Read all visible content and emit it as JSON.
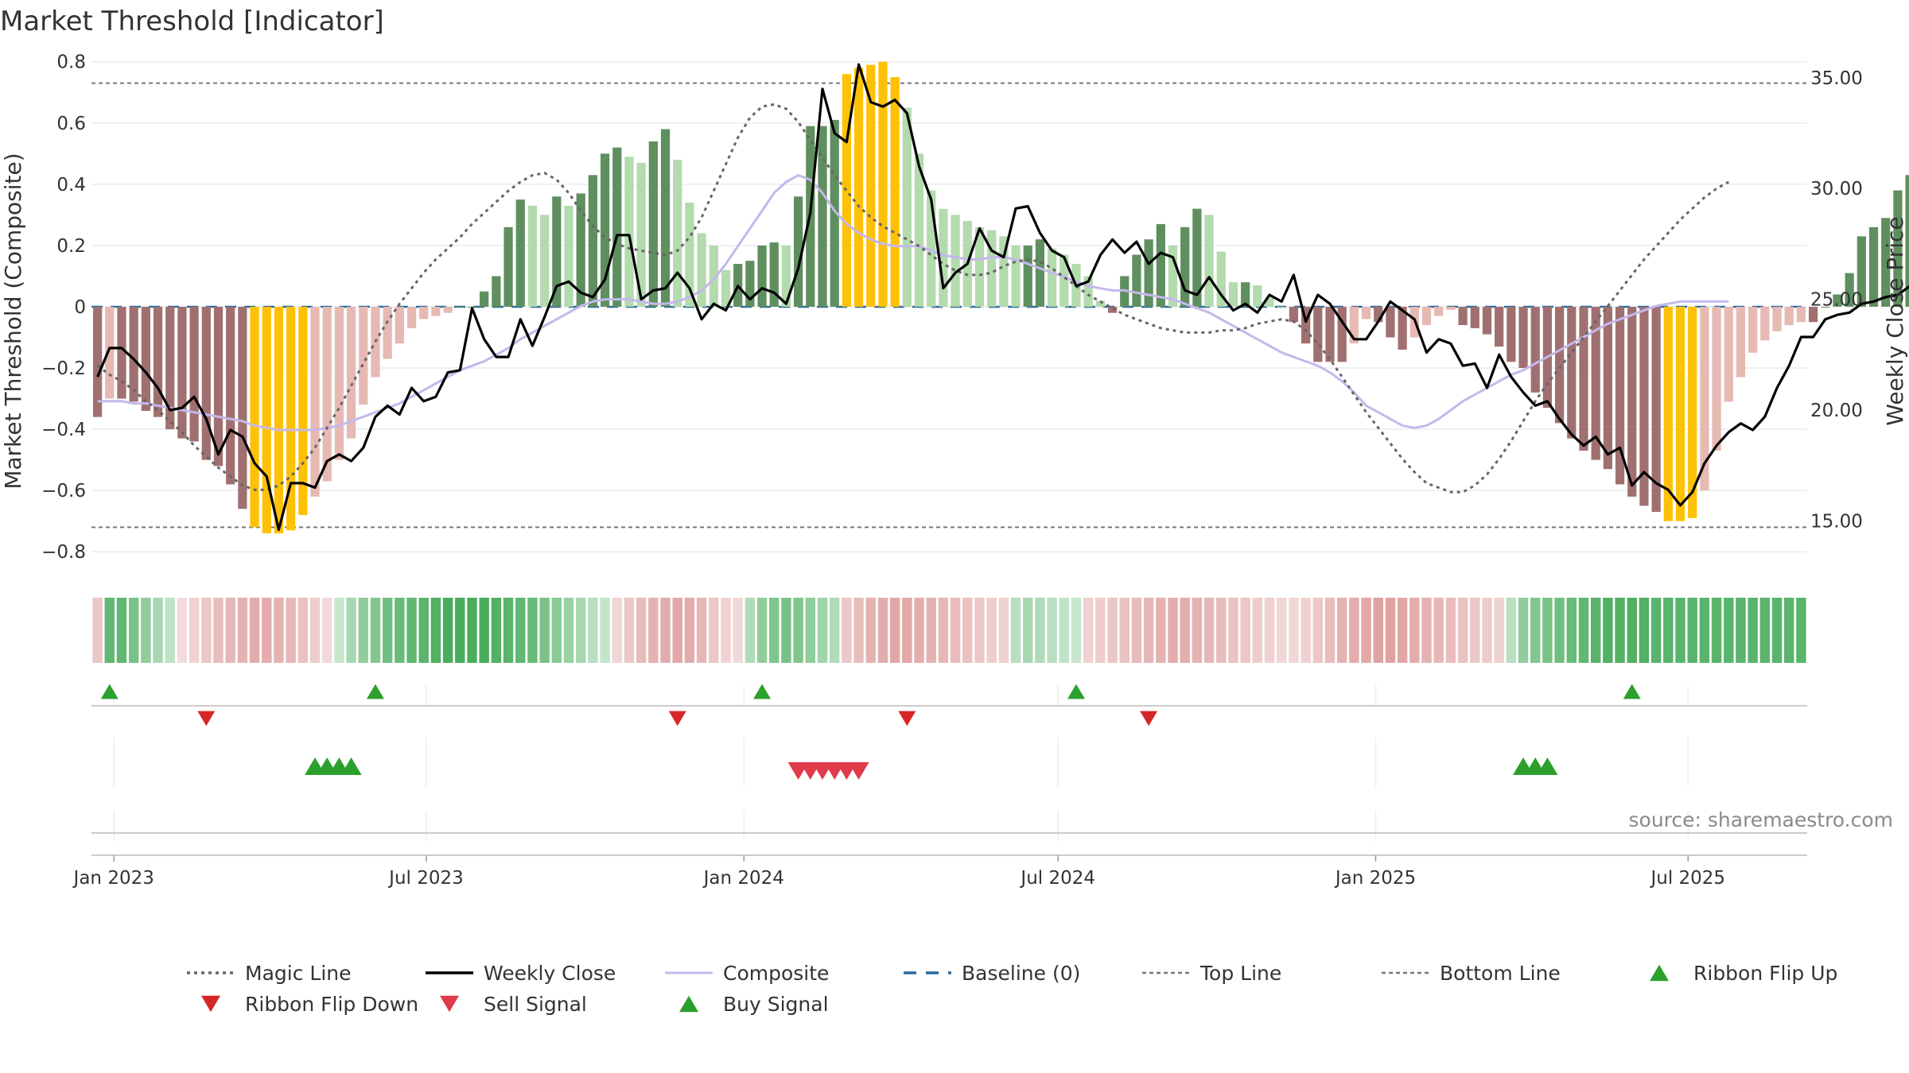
{
  "chart_data": {
    "type": "bar",
    "title": "Market Threshold [Indicator]",
    "ylabel": "Market Threshold (Composite)",
    "y2label": "Weekly Close Price",
    "source": "source: sharemaestro.com",
    "ylim": [
      -0.88,
      0.82
    ],
    "y2lim": [
      12.5,
      36.0
    ],
    "yticks": [
      "0.8",
      "0.6",
      "0.4",
      "0.2",
      "0",
      "−0.2",
      "−0.4",
      "−0.6",
      "−0.8"
    ],
    "ytick_values": [
      0.8,
      0.6,
      0.4,
      0.2,
      0,
      -0.2,
      -0.4,
      -0.6,
      -0.8
    ],
    "y2ticks": [
      "35.00",
      "30.00",
      "25.00",
      "20.00",
      "15.00"
    ],
    "y2tick_values": [
      35,
      30,
      25,
      20,
      15
    ],
    "x_start": "2022-12-19",
    "x_end": "2025-09-08",
    "xticks": [
      {
        "date": "2023-01-01",
        "label": "Jan 2023"
      },
      {
        "date": "2023-07-01",
        "label": "Jul 2023"
      },
      {
        "date": "2024-01-01",
        "label": "Jan 2024"
      },
      {
        "date": "2024-07-01",
        "label": "Jul 2024"
      },
      {
        "date": "2025-01-01",
        "label": "Jan 2025"
      },
      {
        "date": "2025-07-01",
        "label": "Jul 2025"
      }
    ],
    "threshold_lines": {
      "top": 0.73,
      "bottom": -0.72,
      "baseline": 0
    },
    "composite_values": [
      -0.36,
      -0.3,
      -0.3,
      -0.31,
      -0.34,
      -0.36,
      -0.4,
      -0.43,
      -0.44,
      -0.5,
      -0.52,
      -0.58,
      -0.66,
      -0.72,
      -0.74,
      -0.74,
      -0.73,
      -0.68,
      -0.62,
      -0.57,
      -0.5,
      -0.43,
      -0.32,
      -0.23,
      -0.17,
      -0.12,
      -0.07,
      -0.04,
      -0.03,
      -0.02,
      0.0,
      0.0,
      0.05,
      0.1,
      0.26,
      0.35,
      0.33,
      0.3,
      0.36,
      0.33,
      0.37,
      0.43,
      0.5,
      0.52,
      0.49,
      0.47,
      0.54,
      0.58,
      0.48,
      0.34,
      0.24,
      0.2,
      0.12,
      0.14,
      0.15,
      0.2,
      0.21,
      0.2,
      0.36,
      0.59,
      0.59,
      0.61,
      0.76,
      0.78,
      0.79,
      0.8,
      0.75,
      0.65,
      0.5,
      0.38,
      0.32,
      0.3,
      0.28,
      0.26,
      0.25,
      0.23,
      0.2,
      0.2,
      0.22,
      0.19,
      0.17,
      0.14,
      0.1,
      0.02,
      -0.02,
      0.1,
      0.17,
      0.22,
      0.27,
      0.2,
      0.26,
      0.32,
      0.3,
      0.18,
      0.08,
      0.08,
      0.07,
      0.03,
      0.0,
      -0.05,
      -0.12,
      -0.18,
      -0.18,
      -0.18,
      -0.12,
      -0.04,
      -0.05,
      -0.1,
      -0.14,
      -0.1,
      -0.06,
      -0.03,
      -0.01,
      -0.06,
      -0.07,
      -0.09,
      -0.13,
      -0.18,
      -0.2,
      -0.28,
      -0.33,
      -0.38,
      -0.43,
      -0.47,
      -0.5,
      -0.53,
      -0.58,
      -0.62,
      -0.65,
      -0.67,
      -0.7,
      -0.7,
      -0.69,
      -0.6,
      -0.47,
      -0.31,
      -0.23,
      -0.15,
      -0.11,
      -0.08,
      -0.06,
      -0.05,
      -0.05,
      0.0,
      0.04,
      0.11,
      0.23,
      0.26,
      0.29,
      0.38,
      0.43,
      0.45,
      0.48,
      0.51,
      0.55
    ],
    "weekly_close": [
      21.5,
      22.8,
      22.8,
      22.3,
      21.7,
      21.0,
      20.0,
      20.1,
      20.6,
      19.6,
      18.0,
      19.1,
      18.8,
      17.6,
      17.0,
      14.6,
      16.7,
      16.7,
      16.5,
      17.7,
      18.0,
      17.7,
      18.3,
      19.7,
      20.2,
      19.8,
      21.0,
      20.4,
      20.6,
      21.7,
      21.8,
      24.6,
      23.2,
      22.4,
      22.4,
      24.1,
      22.9,
      24.2,
      25.6,
      25.8,
      25.3,
      25.1,
      25.9,
      27.9,
      27.9,
      25.0,
      25.4,
      25.5,
      26.2,
      25.5,
      24.1,
      24.8,
      24.5,
      25.6,
      25.0,
      25.5,
      25.3,
      24.8,
      26.4,
      28.9,
      34.5,
      32.5,
      32.1,
      35.6,
      33.9,
      33.7,
      34.0,
      33.4,
      31.0,
      29.5,
      25.5,
      26.2,
      26.6,
      28.2,
      27.2,
      26.9,
      29.1,
      29.2,
      28.0,
      27.2,
      26.9,
      25.6,
      25.8,
      27.0,
      27.7,
      27.1,
      27.6,
      26.6,
      27.1,
      26.9,
      25.4,
      25.2,
      26.0,
      25.2,
      24.5,
      24.8,
      24.4,
      25.2,
      24.9,
      26.1,
      24.0,
      25.2,
      24.8,
      24.0,
      23.2,
      23.2,
      24.0,
      24.9,
      24.5,
      24.1,
      22.6,
      23.2,
      23.0,
      22.0,
      22.1,
      21.0,
      22.5,
      21.5,
      20.8,
      20.2,
      20.4,
      19.6,
      18.9,
      18.4,
      18.8,
      18.0,
      18.3,
      16.6,
      17.2,
      16.7,
      16.4,
      15.7,
      16.3,
      17.6,
      18.4,
      19.0,
      19.4,
      19.1,
      19.7,
      21.0,
      22.0,
      23.3,
      23.3,
      24.1,
      24.3,
      24.4,
      24.8,
      24.9,
      25.1,
      25.2,
      25.6,
      26.0
    ],
    "magic_line": [
      22.0,
      21.6,
      21.3,
      20.9,
      20.4,
      20.0,
      19.5,
      19.0,
      18.4,
      17.9,
      17.4,
      17.0,
      16.6,
      16.4,
      16.4,
      16.6,
      17.0,
      17.6,
      18.3,
      19.2,
      20.1,
      21.1,
      22.1,
      23.1,
      24.0,
      24.8,
      25.5,
      26.2,
      26.8,
      27.3,
      27.8,
      28.4,
      28.9,
      29.4,
      29.9,
      30.3,
      30.6,
      30.7,
      30.4,
      29.8,
      29.0,
      28.3,
      27.8,
      27.5,
      27.3,
      27.2,
      27.1,
      27.0,
      27.2,
      27.8,
      28.7,
      29.9,
      31.1,
      32.3,
      33.2,
      33.7,
      33.8,
      33.6,
      33.0,
      32.2,
      31.4,
      30.6,
      29.9,
      29.2,
      28.7,
      28.3,
      28.0,
      27.7,
      27.4,
      27.0,
      26.6,
      26.3,
      26.1,
      26.1,
      26.2,
      26.5,
      26.7,
      26.8,
      26.7,
      26.4,
      26.0,
      25.6,
      25.2,
      24.9,
      24.6,
      24.3,
      24.1,
      23.9,
      23.7,
      23.6,
      23.5,
      23.5,
      23.5,
      23.6,
      23.6,
      23.7,
      23.9,
      24.0,
      24.1,
      24.0,
      23.6,
      23.0,
      22.3,
      21.5,
      20.7,
      19.9,
      19.2,
      18.5,
      17.8,
      17.2,
      16.7,
      16.5,
      16.3,
      16.3,
      16.6,
      17.1,
      17.8,
      18.6,
      19.5,
      20.4,
      21.2,
      21.9,
      22.6,
      23.3,
      24.0,
      24.7,
      25.4,
      26.1,
      26.8,
      27.4,
      28.0,
      28.6,
      29.1,
      29.6,
      30.0,
      30.3
    ],
    "composite_line": [
      20.4,
      20.4,
      20.4,
      20.3,
      20.3,
      20.2,
      20.1,
      20.0,
      19.9,
      19.8,
      19.7,
      19.6,
      19.5,
      19.3,
      19.2,
      19.1,
      19.1,
      19.1,
      19.1,
      19.2,
      19.3,
      19.5,
      19.7,
      19.9,
      20.1,
      20.3,
      20.6,
      20.9,
      21.2,
      21.5,
      21.8,
      22.0,
      22.2,
      22.5,
      22.8,
      23.2,
      23.5,
      23.8,
      24.1,
      24.4,
      24.7,
      24.9,
      25.0,
      25.0,
      25.0,
      24.9,
      24.8,
      24.8,
      24.9,
      25.1,
      25.4,
      25.9,
      26.6,
      27.4,
      28.2,
      29.0,
      29.8,
      30.3,
      30.6,
      30.4,
      29.8,
      29.0,
      28.4,
      28.0,
      27.7,
      27.5,
      27.4,
      27.4,
      27.4,
      27.2,
      27.0,
      26.9,
      26.8,
      26.8,
      26.9,
      26.9,
      26.8,
      26.6,
      26.4,
      26.2,
      26.0,
      25.8,
      25.6,
      25.5,
      25.4,
      25.4,
      25.3,
      25.2,
      25.1,
      25.0,
      24.8,
      24.6,
      24.4,
      24.1,
      23.8,
      23.5,
      23.2,
      22.9,
      22.6,
      22.4,
      22.2,
      22.0,
      21.7,
      21.3,
      20.8,
      20.2,
      19.9,
      19.6,
      19.3,
      19.2,
      19.3,
      19.6,
      20.0,
      20.4,
      20.7,
      21.0,
      21.3,
      21.6,
      21.8,
      22.1,
      22.4,
      22.7,
      23.0,
      23.3,
      23.6,
      23.9,
      24.1,
      24.3,
      24.5,
      24.7,
      24.8,
      24.9,
      24.9,
      24.9,
      24.9,
      24.9
    ],
    "ribbon_intensity": [
      -0.3,
      0.75,
      0.75,
      0.6,
      0.45,
      0.3,
      0.15,
      -0.1,
      -0.2,
      -0.3,
      -0.4,
      -0.45,
      -0.5,
      -0.55,
      -0.55,
      -0.5,
      -0.45,
      -0.35,
      -0.25,
      -0.12,
      0.1,
      0.3,
      0.45,
      0.55,
      0.65,
      0.7,
      0.75,
      0.8,
      0.85,
      0.9,
      0.9,
      0.9,
      0.9,
      0.85,
      0.8,
      0.75,
      0.7,
      0.6,
      0.5,
      0.4,
      0.3,
      0.2,
      0.12,
      -0.15,
      -0.3,
      -0.4,
      -0.5,
      -0.55,
      -0.6,
      -0.55,
      -0.45,
      -0.3,
      -0.2,
      -0.12,
      0.25,
      0.45,
      0.55,
      0.6,
      0.55,
      0.45,
      0.35,
      0.25,
      -0.3,
      -0.4,
      -0.5,
      -0.55,
      -0.6,
      -0.6,
      -0.55,
      -0.5,
      -0.45,
      -0.4,
      -0.35,
      -0.3,
      -0.25,
      -0.2,
      0.2,
      0.3,
      0.25,
      0.2,
      0.15,
      0.1,
      -0.2,
      -0.25,
      -0.3,
      -0.35,
      -0.4,
      -0.45,
      -0.5,
      -0.55,
      -0.55,
      -0.5,
      -0.45,
      -0.4,
      -0.35,
      -0.3,
      -0.25,
      -0.2,
      -0.15,
      -0.15,
      -0.2,
      -0.3,
      -0.4,
      -0.5,
      -0.55,
      -0.6,
      -0.65,
      -0.65,
      -0.6,
      -0.55,
      -0.5,
      -0.45,
      -0.4,
      -0.35,
      -0.3,
      -0.25,
      -0.2,
      0.2,
      0.45,
      0.55,
      0.6,
      0.65,
      0.7,
      0.75,
      0.8,
      0.85,
      0.85,
      0.85,
      0.85,
      0.8,
      0.8,
      0.8,
      0.8,
      0.8,
      0.8,
      0.8,
      0.8,
      0.8,
      0.8,
      0.8,
      0.8,
      0.8
    ],
    "ribbon_flip_up": [
      "2022-12-26",
      "2023-05-29",
      "2024-01-08",
      "2024-07-08",
      "2025-05-26"
    ],
    "ribbon_flip_down": [
      "2023-02-20",
      "2023-11-20",
      "2024-04-01",
      "2024-08-19"
    ],
    "buy_signals": [
      "2023-04-24",
      "2023-05-01",
      "2023-05-08",
      "2023-05-15",
      "2025-03-24",
      "2025-03-31",
      "2025-04-07"
    ],
    "sell_signals": [
      "2024-01-29",
      "2024-02-05",
      "2024-02-12",
      "2024-02-19",
      "2024-02-26",
      "2024-03-04"
    ],
    "colors": {
      "bull_strong": "#5f8f5f",
      "bull_weak": "#b3dbad",
      "bear_strong": "#a07070",
      "bear_weak": "#e6b9b3",
      "extreme": "#ffc107",
      "ribbon_green": "#3aa64f",
      "ribbon_red": "#d47f7f",
      "weekly_close": "#000000",
      "magic_line": "#666666",
      "composite_line": "#c4b8ec",
      "baseline": "#2a6a9e",
      "threshold_lines": "#777777",
      "flip_up": "#2ca02c",
      "flip_down": "#d62728",
      "buy": "#2ca02c",
      "sell": "#e03b4a"
    },
    "legend": [
      {
        "label": "Magic Line",
        "kind": "dotted",
        "color": "#666666"
      },
      {
        "label": "Weekly Close",
        "kind": "solid",
        "color": "#000000"
      },
      {
        "label": "Composite",
        "kind": "solid-thin",
        "color": "#c4b8ec"
      },
      {
        "label": "Baseline (0)",
        "kind": "dashed",
        "color": "#2a6a9e"
      },
      {
        "label": "Top Line",
        "kind": "dashed-fine",
        "color": "#777777"
      },
      {
        "label": "Bottom Line",
        "kind": "dashed-fine",
        "color": "#777777"
      },
      {
        "label": "Ribbon Flip Up",
        "kind": "tri-up",
        "color": "#2ca02c"
      },
      {
        "label": "Ribbon Flip Down",
        "kind": "tri-down",
        "color": "#d62728"
      },
      {
        "label": "Sell Signal",
        "kind": "tri-down",
        "color": "#e03b4a"
      },
      {
        "label": "Buy Signal",
        "kind": "tri-up",
        "color": "#2ca02c"
      }
    ]
  }
}
